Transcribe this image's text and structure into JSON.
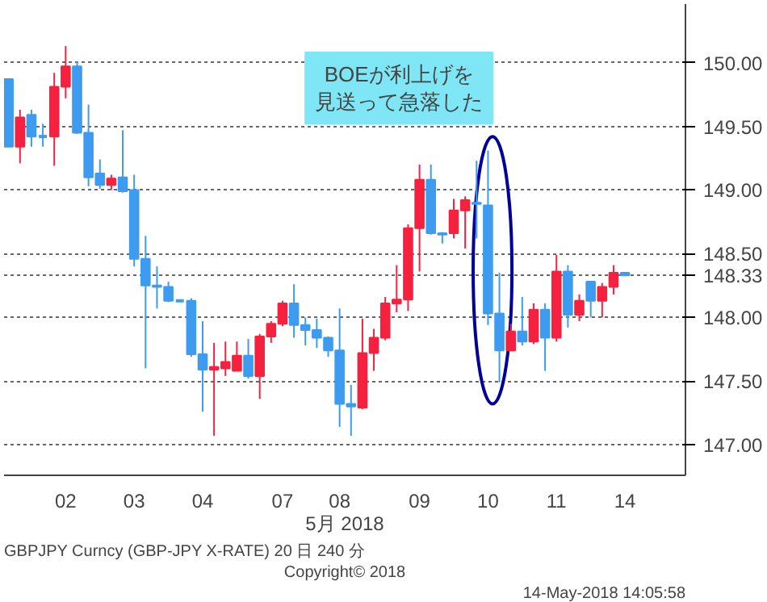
{
  "chart_data": {
    "type": "candlestick",
    "xlabel": "5月 2018",
    "categories": [
      null,
      null,
      null,
      null,
      null,
      "02",
      null,
      null,
      null,
      null,
      null,
      "03",
      null,
      null,
      null,
      null,
      null,
      "04",
      null,
      null,
      null,
      null,
      null,
      null,
      "07",
      null,
      null,
      null,
      null,
      "08",
      null,
      null,
      null,
      null,
      null,
      null,
      "09",
      null,
      null,
      null,
      null,
      null,
      "10",
      null,
      null,
      null,
      null,
      null,
      "11",
      null,
      null,
      null,
      null,
      null,
      "14"
    ],
    "ohlc": [
      [
        149.87,
        149.87,
        149.34,
        149.34
      ],
      [
        149.34,
        149.63,
        149.21,
        149.57
      ],
      [
        149.59,
        149.63,
        149.34,
        149.42
      ],
      [
        149.42,
        149.52,
        149.34,
        149.42
      ],
      [
        149.42,
        149.92,
        149.19,
        149.81
      ],
      [
        149.81,
        150.13,
        149.72,
        149.97
      ],
      [
        149.97,
        150.01,
        149.44,
        149.45
      ],
      [
        149.45,
        149.67,
        149.03,
        149.1
      ],
      [
        149.13,
        149.24,
        149.01,
        149.04
      ],
      [
        149.04,
        149.12,
        149.0,
        149.09
      ],
      [
        149.1,
        149.47,
        148.98,
        148.99
      ],
      [
        149.0,
        149.12,
        148.4,
        148.46
      ],
      [
        148.46,
        148.64,
        147.6,
        148.25
      ],
      [
        148.25,
        148.4,
        148.07,
        148.24
      ],
      [
        148.24,
        148.28,
        148.12,
        148.13
      ],
      [
        148.13,
        148.13,
        148.13,
        148.13
      ],
      [
        148.13,
        148.15,
        147.69,
        147.71
      ],
      [
        147.71,
        147.97,
        147.26,
        147.59
      ],
      [
        147.59,
        147.8,
        147.07,
        147.61
      ],
      [
        147.6,
        147.81,
        147.54,
        147.65
      ],
      [
        147.58,
        147.81,
        147.58,
        147.7
      ],
      [
        147.7,
        147.83,
        147.52,
        147.54
      ],
      [
        147.54,
        147.87,
        147.36,
        147.85
      ],
      [
        147.85,
        147.97,
        147.8,
        147.95
      ],
      [
        147.95,
        148.13,
        147.93,
        148.11
      ],
      [
        148.11,
        148.26,
        147.84,
        147.94
      ],
      [
        147.94,
        148.0,
        147.78,
        147.9
      ],
      [
        147.9,
        147.99,
        147.76,
        147.84
      ],
      [
        147.84,
        147.85,
        147.69,
        147.74
      ],
      [
        147.74,
        148.07,
        147.14,
        147.32
      ],
      [
        147.32,
        147.47,
        147.07,
        147.3
      ],
      [
        147.29,
        147.99,
        147.28,
        147.72
      ],
      [
        147.72,
        147.91,
        147.58,
        147.84
      ],
      [
        147.84,
        148.16,
        147.82,
        148.11
      ],
      [
        148.11,
        148.41,
        148.04,
        148.14
      ],
      [
        148.14,
        148.73,
        148.05,
        148.7
      ],
      [
        148.7,
        149.2,
        148.36,
        149.08
      ],
      [
        149.08,
        149.2,
        148.65,
        148.66
      ],
      [
        148.66,
        148.67,
        148.58,
        148.65
      ],
      [
        148.66,
        148.93,
        148.62,
        148.84
      ],
      [
        148.84,
        148.95,
        148.54,
        148.92
      ],
      [
        148.9,
        149.23,
        148.62,
        148.89
      ],
      [
        148.88,
        149.31,
        147.94,
        148.03
      ],
      [
        148.03,
        148.35,
        147.49,
        147.74
      ],
      [
        147.74,
        147.95,
        147.74,
        147.89
      ],
      [
        147.89,
        148.16,
        147.78,
        147.81
      ],
      [
        147.81,
        148.11,
        147.79,
        148.06
      ],
      [
        148.06,
        148.11,
        147.58,
        147.84
      ],
      [
        147.84,
        148.49,
        147.81,
        148.36
      ],
      [
        148.36,
        148.41,
        147.92,
        148.02
      ],
      [
        148.02,
        148.18,
        147.97,
        148.13
      ],
      [
        148.28,
        148.28,
        148.0,
        148.13
      ],
      [
        148.13,
        148.27,
        148.0,
        148.24
      ],
      [
        148.24,
        148.41,
        148.18,
        148.35
      ],
      [
        148.35,
        148.35,
        148.33,
        148.33
      ]
    ],
    "colors": [
      "#3d9bf0",
      "#f5213f",
      "#3d9bf0",
      "#3d9bf0",
      "#f5213f",
      "#f5213f",
      "#3d9bf0",
      "#3d9bf0",
      "#3d9bf0",
      "#f5213f",
      "#3d9bf0",
      "#3d9bf0",
      "#3d9bf0",
      "#3d9bf0",
      "#3d9bf0",
      "#3d9bf0",
      "#3d9bf0",
      "#3d9bf0",
      "#f5213f",
      "#f5213f",
      "#f5213f",
      "#3d9bf0",
      "#f5213f",
      "#f5213f",
      "#f5213f",
      "#3d9bf0",
      "#3d9bf0",
      "#3d9bf0",
      "#3d9bf0",
      "#3d9bf0",
      "#3d9bf0",
      "#f5213f",
      "#f5213f",
      "#f5213f",
      "#f5213f",
      "#f5213f",
      "#f5213f",
      "#3d9bf0",
      "#3d9bf0",
      "#f5213f",
      "#f5213f",
      "#3d9bf0",
      "#3d9bf0",
      "#3d9bf0",
      "#f5213f",
      "#3d9bf0",
      "#f5213f",
      "#3d9bf0",
      "#f5213f",
      "#3d9bf0",
      "#f5213f",
      "#3d9bf0",
      "#f5213f",
      "#f5213f",
      "#3d9bf0"
    ],
    "ylim": [
      146.76,
      150.46
    ],
    "yticks": [
      {
        "value": 147,
        "label": "147.00"
      },
      {
        "value": 147.5,
        "label": "147.50"
      },
      {
        "value": 148,
        "label": "148.00"
      },
      {
        "value": 148.33,
        "label": "148.33"
      },
      {
        "value": 148.5,
        "label": "148.50"
      },
      {
        "value": 149,
        "label": "149.00"
      },
      {
        "value": 149.5,
        "label": "149.50"
      },
      {
        "value": 150,
        "label": "150.00"
      }
    ],
    "grid": "y",
    "annotations": [
      "BOEが利上げを見送って急落した",
      "GBPJPY Curncy (GBP-JPY X-RATE) 20 日 240 分",
      "Copyright© 2018",
      "14-May-2018 14:05:58"
    ]
  }
}
